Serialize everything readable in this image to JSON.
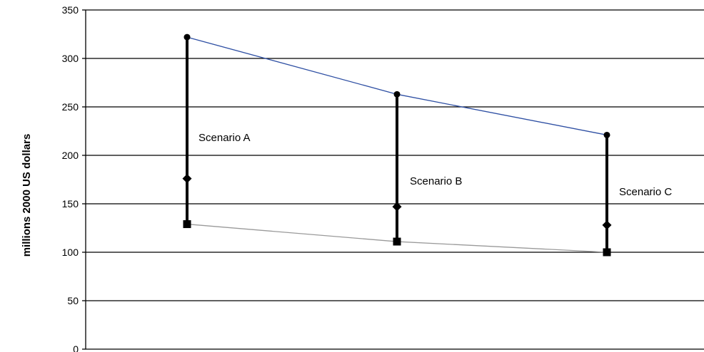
{
  "chart_data": {
    "type": "line",
    "ylabel": "millions 2000 US dollars",
    "ylim": [
      0,
      350
    ],
    "yticks": [
      "0",
      "50",
      "100",
      "150",
      "200",
      "250",
      "300",
      "350"
    ],
    "grid": true,
    "series": [
      {
        "values": [
          322,
          263,
          221
        ],
        "color": "#2e4fa3",
        "marker": "circle"
      },
      {
        "values": [
          176,
          147,
          128
        ],
        "color": "#000000",
        "marker": "diamond"
      },
      {
        "values": [
          129,
          111,
          100
        ],
        "color": "#9a9a9a",
        "marker": "square"
      }
    ],
    "annotations": [
      {
        "text": "Scenario A"
      },
      {
        "text": "Scenario B"
      },
      {
        "text": "Scenario C"
      }
    ]
  }
}
